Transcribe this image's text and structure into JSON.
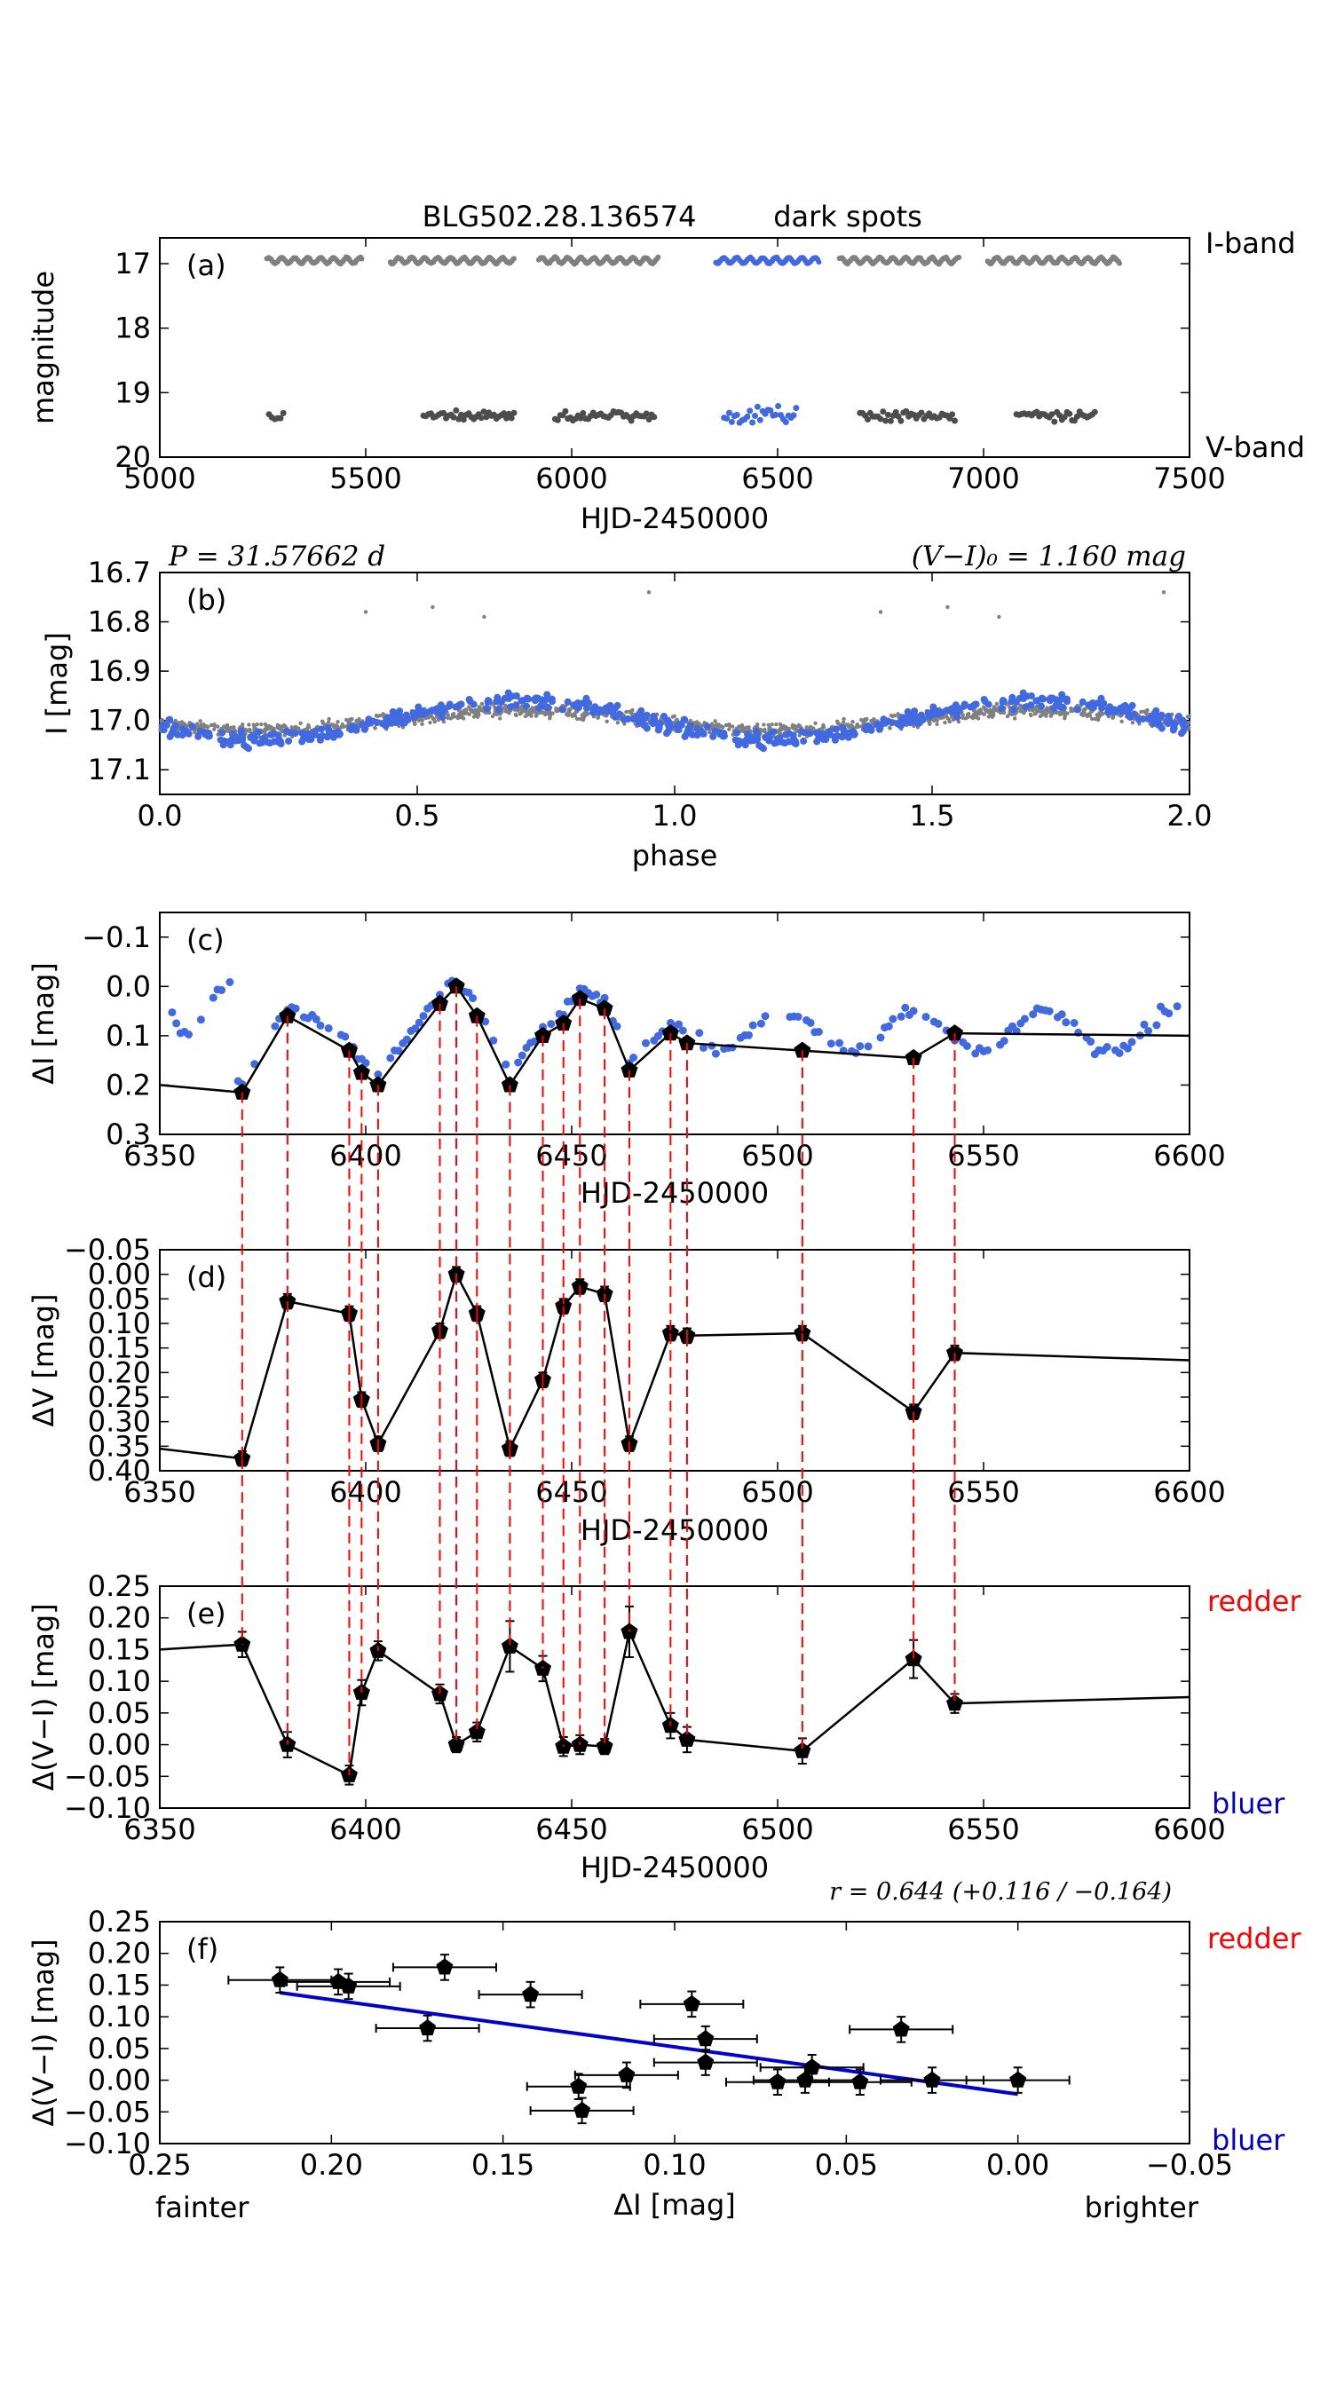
{
  "figure": {
    "title_id": "BLG502.28.136574",
    "title_note": "dark spots",
    "label_I_band": "I-band",
    "label_V_band": "V-band",
    "period_text": "P = 31.57662 d",
    "color_text": "(V−I)₀ = 1.160 mag",
    "r_text": "r = 0.644 (+0.116 / −0.164)",
    "redder": "redder",
    "bluer": "bluer",
    "fainter": "fainter",
    "brighter": "brighter"
  },
  "colors": {
    "gray": "#808080",
    "darkgray": "#4d4d4d",
    "blue": "#4169e1",
    "red": "#ff0000",
    "fitblue": "#0000cd",
    "black": "#000000"
  },
  "chart_data": [
    {
      "panel": "a",
      "type": "scatter",
      "title": "BLG502.28.136574 dark spots",
      "xlabel": "HJD-2450000",
      "ylabel": "magnitude",
      "xlim": [
        5000,
        7500
      ],
      "ylim": [
        20,
        16.6
      ],
      "xticks": [
        "5000",
        "5500",
        "6000",
        "6500",
        "7000",
        "7500"
      ],
      "yticks": [
        "17",
        "18",
        "19",
        "20"
      ],
      "series": [
        {
          "name": "I-band seasons",
          "color": "gray",
          "mag": 16.95,
          "seasons": [
            [
              5260,
              5490
            ],
            [
              5560,
              5860
            ],
            [
              5920,
              6210
            ],
            [
              6650,
              6940
            ],
            [
              7010,
              7330
            ]
          ]
        },
        {
          "name": "I-band highlighted season",
          "color": "blue",
          "mag": 16.95,
          "seasons": [
            [
              6350,
              6600
            ]
          ]
        },
        {
          "name": "V-band seasons",
          "color": "darkgray",
          "mag": 19.35,
          "seasons": [
            [
              5265,
              5300
            ],
            [
              5640,
              5860
            ],
            [
              5960,
              6200
            ],
            [
              6700,
              6930
            ],
            [
              7080,
              7270
            ]
          ]
        },
        {
          "name": "V-band highlighted season",
          "color": "blue",
          "mag": 19.35,
          "seasons": [
            [
              6370,
              6545
            ]
          ]
        }
      ]
    },
    {
      "panel": "b",
      "type": "scatter",
      "xlabel": "phase",
      "ylabel": "I [mag]",
      "xlim": [
        0.0,
        2.0
      ],
      "ylim": [
        17.15,
        16.7
      ],
      "xticks": [
        "0.0",
        "0.5",
        "1.0",
        "1.5",
        "2.0"
      ],
      "yticks": [
        "16.7",
        "16.8",
        "16.9",
        "17.0",
        "17.1"
      ],
      "model": {
        "mean": 17.0,
        "amplitude": 0.04,
        "min_phase": 0.2
      },
      "outliers": [
        [
          0.4,
          16.78
        ],
        [
          0.53,
          16.77
        ],
        [
          0.63,
          16.79
        ],
        [
          0.95,
          16.74
        ],
        [
          1.4,
          16.78
        ],
        [
          1.53,
          16.77
        ],
        [
          1.63,
          16.79
        ],
        [
          1.95,
          16.74
        ]
      ]
    },
    {
      "panel": "c",
      "type": "line",
      "xlabel": "HJD-2450000",
      "ylabel": "ΔI [mag]",
      "xlim": [
        6350,
        6600
      ],
      "ylim": [
        0.3,
        -0.15
      ],
      "xticks": [
        "6350",
        "6400",
        "6450",
        "6500",
        "6550",
        "6600"
      ],
      "yticks": [
        "−0.1",
        "0.0",
        "0.1",
        "0.2",
        "0.3"
      ],
      "x": [
        6370,
        6381,
        6396,
        6399,
        6403,
        6418,
        6422,
        6427,
        6435,
        6443,
        6448,
        6452,
        6458,
        6464,
        6474,
        6478,
        6506,
        6533,
        6543
      ],
      "y": [
        0.215,
        0.06,
        0.13,
        0.175,
        0.2,
        0.035,
        0.0,
        0.06,
        0.2,
        0.1,
        0.075,
        0.025,
        0.045,
        0.17,
        0.095,
        0.115,
        0.13,
        0.145,
        0.095
      ],
      "line_extend": {
        "left": [
          6350,
          0.2
        ],
        "right": [
          6600,
          0.1
        ]
      }
    },
    {
      "panel": "d",
      "type": "line",
      "xlabel": "HJD-2450000",
      "ylabel": "ΔV [mag]",
      "xlim": [
        6350,
        6600
      ],
      "ylim": [
        0.4,
        -0.05
      ],
      "xticks": [
        "6350",
        "6400",
        "6450",
        "6500",
        "6550",
        "6600"
      ],
      "yticks": [
        "−0.05",
        "0.00",
        "0.05",
        "0.10",
        "0.15",
        "0.20",
        "0.25",
        "0.30",
        "0.35",
        "0.40"
      ],
      "x": [
        6370,
        6381,
        6396,
        6399,
        6403,
        6418,
        6422,
        6427,
        6435,
        6443,
        6448,
        6452,
        6458,
        6464,
        6474,
        6478,
        6506,
        6533,
        6543
      ],
      "y": [
        0.375,
        0.055,
        0.08,
        0.255,
        0.345,
        0.115,
        0.0,
        0.08,
        0.355,
        0.215,
        0.065,
        0.025,
        0.04,
        0.345,
        0.12,
        0.125,
        0.12,
        0.28,
        0.16
      ],
      "err": 0.015,
      "line_extend": {
        "left": [
          6350,
          0.355
        ],
        "right": [
          6600,
          0.175
        ]
      }
    },
    {
      "panel": "e",
      "type": "line",
      "xlabel": "HJD-2450000",
      "ylabel": "Δ(V−I) [mag]",
      "xlim": [
        6350,
        6600
      ],
      "ylim": [
        -0.1,
        0.25
      ],
      "xticks": [
        "6350",
        "6400",
        "6450",
        "6500",
        "6550",
        "6600"
      ],
      "yticks": [
        "0.25",
        "0.20",
        "0.15",
        "0.10",
        "0.05",
        "0.00",
        "−0.05",
        "−0.10"
      ],
      "x": [
        6370,
        6381,
        6396,
        6399,
        6403,
        6418,
        6422,
        6427,
        6435,
        6443,
        6448,
        6452,
        6458,
        6464,
        6474,
        6478,
        6506,
        6533,
        6543
      ],
      "y": [
        0.158,
        0.0,
        -0.048,
        0.082,
        0.148,
        0.08,
        0.0,
        0.02,
        0.155,
        0.12,
        -0.003,
        0.0,
        -0.003,
        0.178,
        0.03,
        0.008,
        -0.01,
        0.135,
        0.065
      ],
      "err": [
        0.02,
        0.02,
        0.015,
        0.02,
        0.015,
        0.015,
        0.012,
        0.015,
        0.04,
        0.02,
        0.015,
        0.015,
        0.012,
        0.04,
        0.02,
        0.02,
        0.02,
        0.03,
        0.015
      ],
      "line_extend": {
        "left": [
          6350,
          0.15
        ],
        "right": [
          6600,
          0.075
        ]
      }
    },
    {
      "panel": "f",
      "type": "scatter",
      "xlabel": "ΔI [mag]",
      "ylabel": "Δ(V−I) [mag]",
      "xlim": [
        0.25,
        -0.05
      ],
      "ylim": [
        -0.1,
        0.25
      ],
      "xticks": [
        "0.25",
        "0.20",
        "0.15",
        "0.10",
        "0.05",
        "0.00",
        "−0.05"
      ],
      "yticks": [
        "0.25",
        "0.20",
        "0.15",
        "0.10",
        "0.05",
        "0.00",
        "−0.05",
        "−0.10"
      ],
      "points": [
        [
          0.215,
          0.158
        ],
        [
          0.198,
          0.155
        ],
        [
          0.195,
          0.148
        ],
        [
          0.172,
          0.082
        ],
        [
          0.167,
          0.178
        ],
        [
          0.142,
          0.135
        ],
        [
          0.128,
          -0.01
        ],
        [
          0.127,
          -0.048
        ],
        [
          0.114,
          0.008
        ],
        [
          0.095,
          0.12
        ],
        [
          0.091,
          0.065
        ],
        [
          0.091,
          0.028
        ],
        [
          0.07,
          -0.003
        ],
        [
          0.062,
          0.0
        ],
        [
          0.06,
          0.02
        ],
        [
          0.046,
          -0.003
        ],
        [
          0.034,
          0.08
        ],
        [
          0.025,
          0.0
        ],
        [
          0.0,
          0.0
        ]
      ],
      "xerr": 0.015,
      "yerr": 0.02,
      "fit": {
        "x": [
          0.215,
          0.0
        ],
        "y": [
          0.138,
          -0.022
        ]
      }
    }
  ]
}
